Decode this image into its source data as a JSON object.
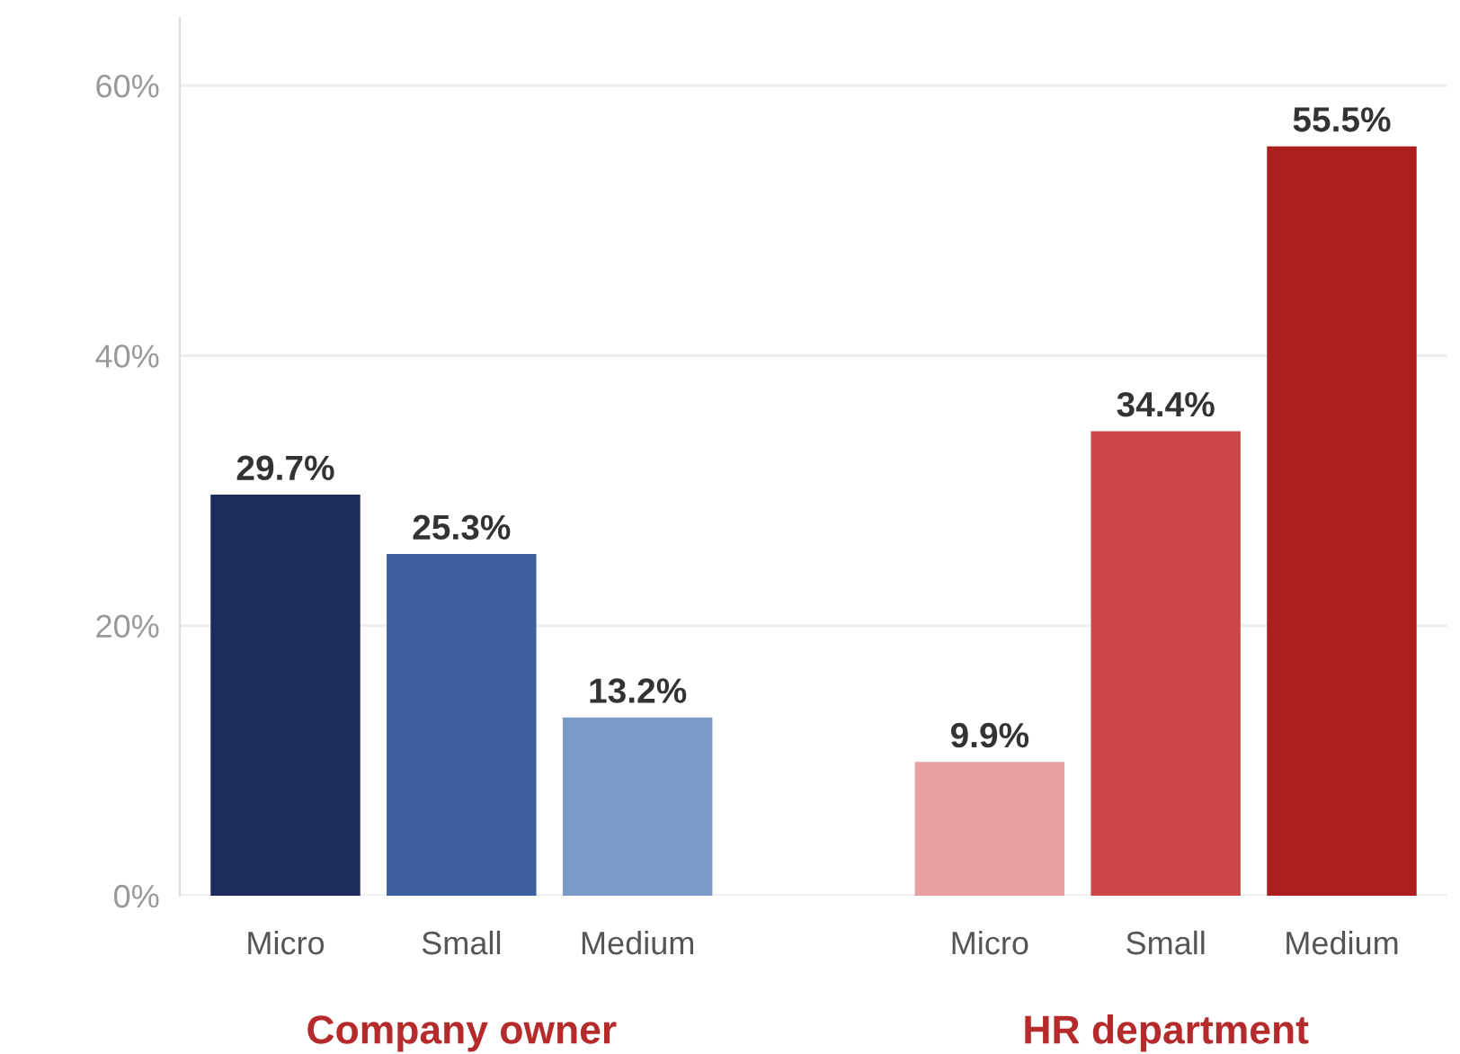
{
  "chart_data": {
    "type": "bar",
    "categories": [
      "Micro",
      "Small",
      "Medium",
      null,
      "Micro",
      "Small",
      "Medium"
    ],
    "values": [
      29.7,
      25.3,
      13.2,
      null,
      9.9,
      34.4,
      55.5
    ],
    "colors": [
      "#1c2a5c",
      "#3d5f9e",
      "#7a9bc8",
      null,
      "#e8a0a0",
      "#cc4848",
      "#ad1f1f"
    ],
    "value_labels": [
      "29.7%",
      "25.3%",
      "13.2%",
      null,
      "9.9%",
      "34.4%",
      "55.5%"
    ],
    "ylim": [
      0,
      65
    ],
    "yticks": [
      {
        "value": 0,
        "label": "0%"
      },
      {
        "value": 20,
        "label": "20%"
      },
      {
        "value": 40,
        "label": "40%"
      },
      {
        "value": 60,
        "label": "60%"
      }
    ],
    "grid": "y",
    "annotations": [
      "Company owner",
      "HR department"
    ]
  }
}
